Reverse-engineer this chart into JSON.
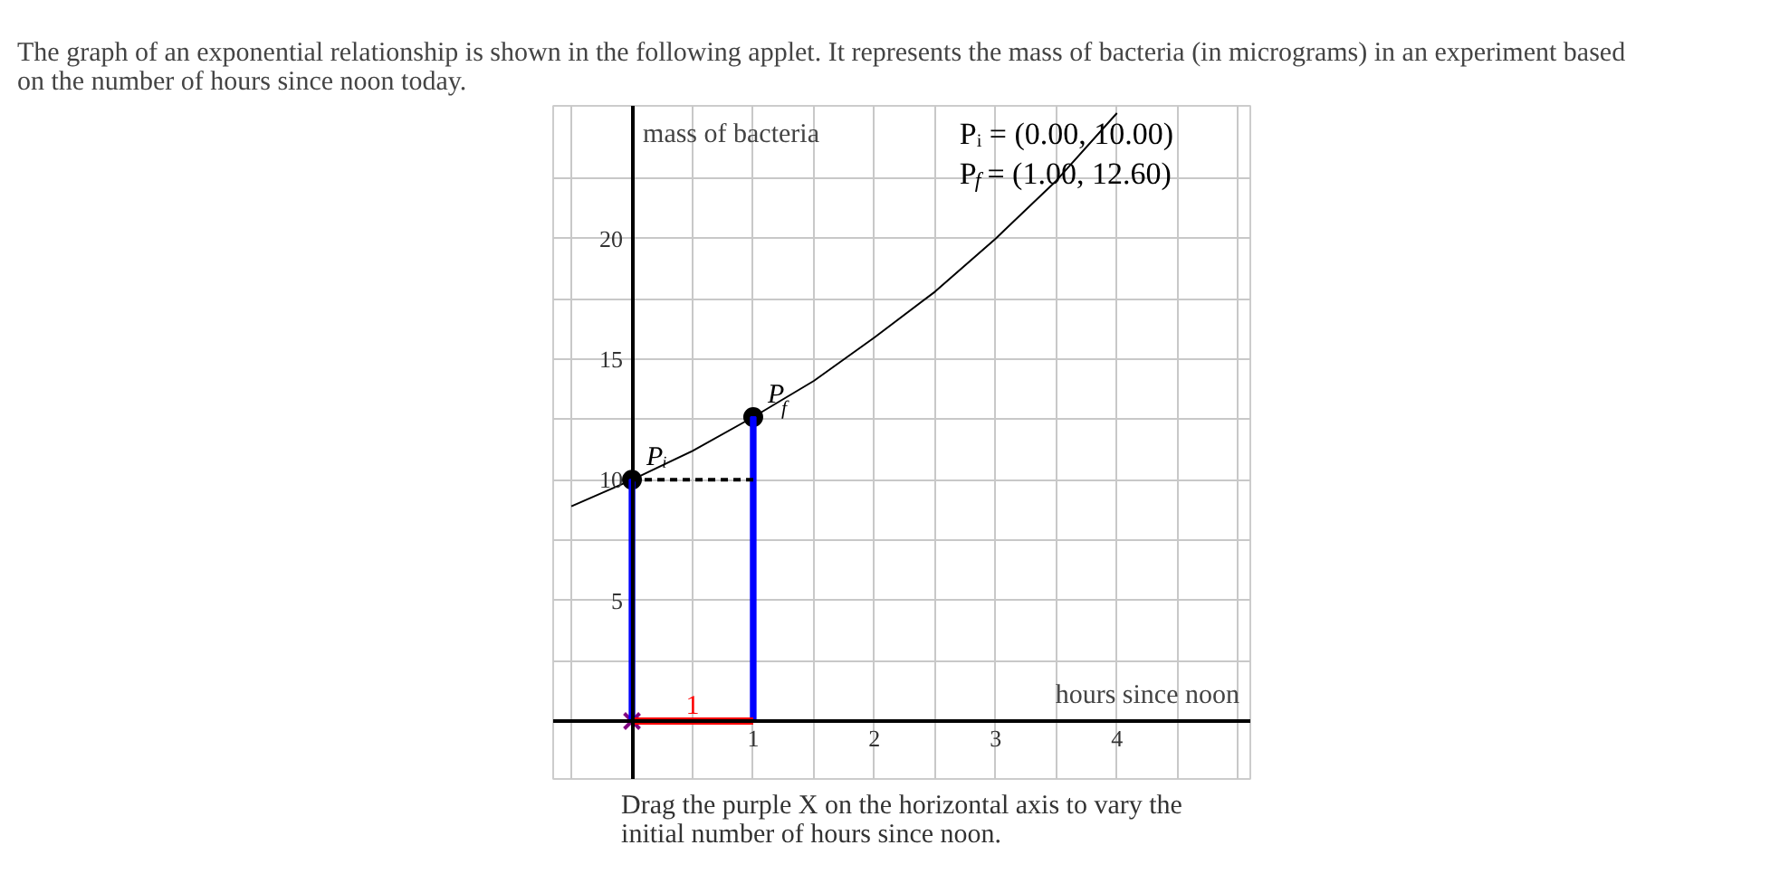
{
  "chart_data": {
    "type": "line",
    "title": "The graph of an exponential relationship is shown in the following applet. It represents the mass of bacteria (in micrograms) in an experiment based on the number of hours since noon today.",
    "xlabel": "hours since noon",
    "ylabel": "mass of bacteria",
    "xlim": [
      -0.65,
      5.1
    ],
    "ylim": [
      -2.4,
      25.5
    ],
    "xticks": [
      {
        "value": -0.5,
        "label": null
      },
      {
        "value": 0,
        "label": null
      },
      {
        "value": 0.5,
        "label": null
      },
      1,
      {
        "value": 1.5,
        "label": null
      },
      2,
      {
        "value": 2.5,
        "label": null
      },
      3,
      {
        "value": 3.5,
        "label": null
      },
      4,
      {
        "value": 4.5,
        "label": null
      },
      {
        "value": 5,
        "label": null
      }
    ],
    "yticks": [
      {
        "value": 0,
        "label": null
      },
      {
        "value": 2.5,
        "label": null
      },
      5,
      {
        "value": 7.5,
        "label": null
      },
      10,
      {
        "value": 12.5,
        "label": null
      },
      15,
      {
        "value": 17.5,
        "label": null
      },
      20,
      {
        "value": 22.5,
        "label": null
      }
    ],
    "grid": true,
    "series": [
      {
        "color": "#000000",
        "x": [
          -0.5,
          0,
          0.5,
          1,
          1.5,
          2,
          2.5,
          3,
          3.5,
          4
        ],
        "values": [
          8.9,
          10,
          11.2,
          12.6,
          14.1,
          15.9,
          17.8,
          20.0,
          22.4,
          25.2
        ]
      },
      {
        "type": "bar",
        "color": "#0000ff",
        "x": [
          0,
          1
        ],
        "values": [
          10,
          12.6
        ]
      },
      {
        "type": "line",
        "color": "#000000",
        "line_style": "dashed",
        "x": [
          0,
          1
        ],
        "values": [
          10,
          10
        ]
      },
      {
        "type": "line",
        "color": "#ff0000",
        "x": [
          0,
          1
        ],
        "values": [
          0,
          0
        ]
      },
      {
        "type": "scatter",
        "marker": "cross",
        "color": "#800080",
        "x": [
          0
        ],
        "values": [
          0
        ]
      },
      {
        "type": "scatter",
        "marker": "circle",
        "color": "#000000",
        "name": "Pᵢ",
        "x": [
          0
        ],
        "values": [
          10
        ]
      },
      {
        "type": "scatter",
        "marker": "circle",
        "color": "#000000",
        "name": "P$_{f}$",
        "x": [
          1
        ],
        "values": [
          12.6
        ]
      }
    ],
    "annotations": [
      {
        "text": "1",
        "x": 0.5,
        "y": 0
      },
      "Pᵢ = (0.00, 10.00)",
      "P$_{f}$ = (1.00, 12.60)",
      "Drag the purple X on the horizontal axis to vary the initial number of hours since noon."
    ]
  }
}
